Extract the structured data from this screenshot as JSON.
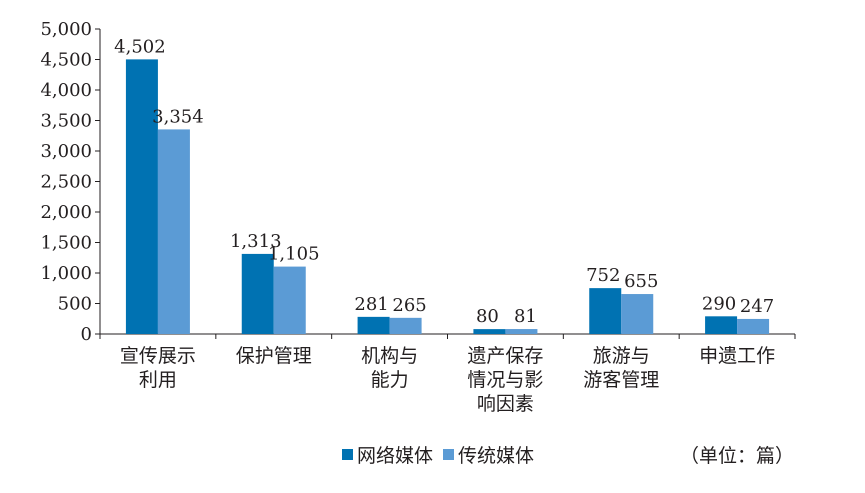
{
  "chart_data": {
    "type": "bar",
    "categories": [
      [
        "宣传展示",
        "利用"
      ],
      [
        "保护管理"
      ],
      [
        "机构与",
        "能力"
      ],
      [
        "遗产保存",
        "情况与影",
        "响因素"
      ],
      [
        "旅游与",
        "游客管理"
      ],
      [
        "申遗工作"
      ]
    ],
    "series": [
      {
        "name": "网络媒体",
        "values": [
          4502,
          1313,
          281,
          80,
          752,
          290
        ],
        "color": "#0072b2"
      },
      {
        "name": "传统媒体",
        "values": [
          3354,
          1105,
          265,
          81,
          655,
          247
        ],
        "color": "#5b9bd5"
      }
    ],
    "data_labels": [
      [
        "4,502",
        "1,313",
        "281",
        "80",
        "752",
        "290"
      ],
      [
        "3,354",
        "1,105",
        "265",
        "81",
        "655",
        "247"
      ]
    ],
    "yticks": [
      "0",
      "500",
      "1,000",
      "1,500",
      "2,000",
      "2,500",
      "3,000",
      "3,500",
      "4,000",
      "4,500",
      "5,000"
    ],
    "ylim": [
      0,
      5000
    ],
    "legend_position": "bottom",
    "unit_note": "（单位：篇）"
  }
}
